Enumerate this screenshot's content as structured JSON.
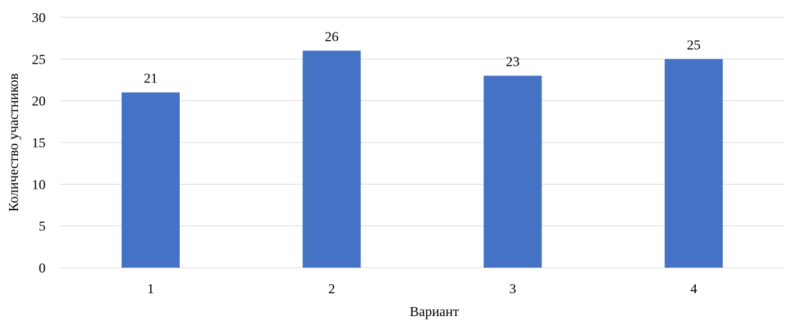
{
  "chart_data": {
    "type": "bar",
    "title": "",
    "xlabel": "Вариант",
    "ylabel": "Количество участников",
    "categories": [
      "1",
      "2",
      "3",
      "4"
    ],
    "values": [
      21,
      26,
      23,
      25
    ],
    "data_labels": [
      "21",
      "26",
      "23",
      "25"
    ],
    "ylim": [
      0,
      30
    ],
    "yticks": [
      0,
      5,
      10,
      15,
      20,
      25,
      30
    ],
    "ytick_labels": [
      "0",
      "5",
      "10",
      "15",
      "20",
      "25",
      "30"
    ],
    "grid": true,
    "legend": "none",
    "colors": {
      "bar": "#4472C4",
      "grid": "#D9D9D9",
      "text": "#000000"
    }
  }
}
